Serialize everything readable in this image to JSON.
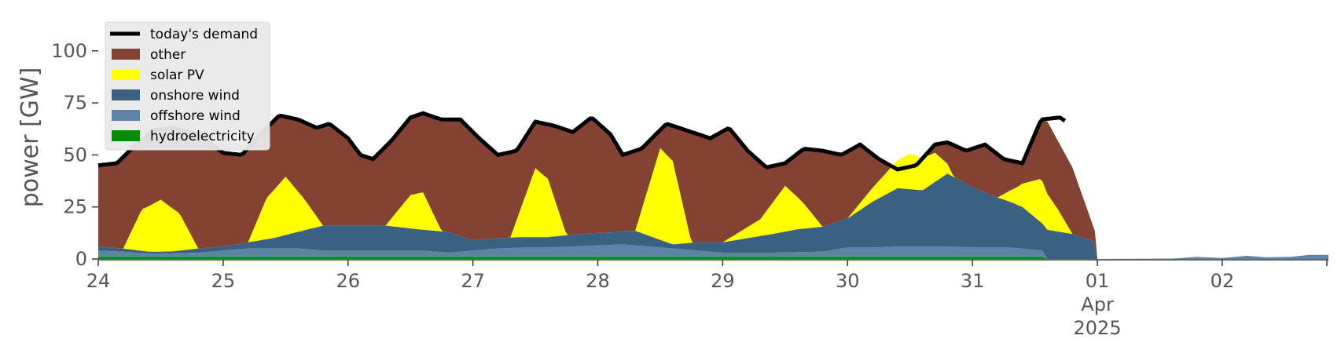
{
  "chart_data": {
    "type": "area",
    "stacked": true,
    "ylabel": "power [GW]",
    "ylim": [
      0,
      115
    ],
    "xlim": [
      0,
      9.85
    ],
    "grid": false,
    "legend_position": "top-left",
    "x_ticks": [
      {
        "x": 0,
        "label": "24"
      },
      {
        "x": 1,
        "label": "25"
      },
      {
        "x": 2,
        "label": "26"
      },
      {
        "x": 3,
        "label": "27"
      },
      {
        "x": 4,
        "label": "28"
      },
      {
        "x": 5,
        "label": "29"
      },
      {
        "x": 6,
        "label": "30"
      },
      {
        "x": 7,
        "label": "31"
      },
      {
        "x": 8,
        "label": "01",
        "sub1": "Apr",
        "sub2": "2025"
      },
      {
        "x": 9,
        "label": "02"
      }
    ],
    "y_ticks": [
      0,
      25,
      50,
      75,
      100
    ],
    "colors": {
      "demand": "#000000",
      "other": "#844232",
      "solar": "#ffff00",
      "onshore": "#3a6183",
      "offshore": "#5b84a8",
      "hydro": "#0a8a0a",
      "legend_bg": "#e9e9e9"
    },
    "legend": [
      {
        "key": "demand",
        "label": "today's demand",
        "kind": "line"
      },
      {
        "key": "other",
        "label": "other",
        "kind": "patch"
      },
      {
        "key": "solar",
        "label": "solar PV",
        "kind": "patch"
      },
      {
        "key": "onshore",
        "label": "onshore wind",
        "kind": "patch"
      },
      {
        "key": "offshore",
        "label": "offshore wind",
        "kind": "patch"
      },
      {
        "key": "hydro",
        "label": "hydroelectricity",
        "kind": "patch"
      }
    ],
    "series": {
      "hydro": [
        [
          0,
          1
        ],
        [
          2,
          1
        ],
        [
          4,
          1
        ],
        [
          6,
          1
        ],
        [
          7,
          1
        ],
        [
          7.56,
          1
        ],
        [
          7.6,
          0
        ]
      ],
      "offshore": [
        [
          0,
          3
        ],
        [
          0.2,
          2.5
        ],
        [
          0.4,
          1.5
        ],
        [
          0.5,
          1.5
        ],
        [
          0.8,
          2
        ],
        [
          1,
          3
        ],
        [
          1.2,
          4
        ],
        [
          1.4,
          4
        ],
        [
          1.6,
          4
        ],
        [
          1.8,
          3
        ],
        [
          2,
          3
        ],
        [
          2.3,
          3
        ],
        [
          2.6,
          3
        ],
        [
          2.8,
          2
        ],
        [
          3,
          3
        ],
        [
          3.2,
          4
        ],
        [
          3.4,
          4.5
        ],
        [
          3.6,
          4.5
        ],
        [
          3.8,
          5
        ],
        [
          4,
          5.5
        ],
        [
          4.2,
          6
        ],
        [
          4.4,
          5
        ],
        [
          4.6,
          4
        ],
        [
          4.8,
          3
        ],
        [
          5,
          2
        ],
        [
          5.4,
          2
        ],
        [
          5.8,
          2.5
        ],
        [
          6,
          4.5
        ],
        [
          6.2,
          4.5
        ],
        [
          6.4,
          5
        ],
        [
          6.8,
          5
        ],
        [
          7,
          4.5
        ],
        [
          7.3,
          4.5
        ],
        [
          7.56,
          3
        ],
        [
          7.6,
          0
        ]
      ],
      "onshore": [
        [
          0,
          2
        ],
        [
          0.2,
          1.5
        ],
        [
          0.4,
          1
        ],
        [
          0.6,
          1
        ],
        [
          0.8,
          2
        ],
        [
          1,
          2
        ],
        [
          1.2,
          3
        ],
        [
          1.4,
          5
        ],
        [
          1.6,
          8
        ],
        [
          1.8,
          12
        ],
        [
          2,
          12
        ],
        [
          2.3,
          12
        ],
        [
          2.6,
          10
        ],
        [
          2.8,
          10
        ],
        [
          3,
          5
        ],
        [
          3.3,
          5
        ],
        [
          3.6,
          5
        ],
        [
          3.9,
          6
        ],
        [
          4.1,
          6
        ],
        [
          4.3,
          7
        ],
        [
          4.6,
          2
        ],
        [
          4.8,
          4
        ],
        [
          5,
          5
        ],
        [
          5.3,
          8
        ],
        [
          5.6,
          11
        ],
        [
          5.8,
          12
        ],
        [
          6,
          14
        ],
        [
          6.2,
          22
        ],
        [
          6.4,
          28
        ],
        [
          6.6,
          27
        ],
        [
          6.8,
          35
        ],
        [
          7,
          29
        ],
        [
          7.2,
          24
        ],
        [
          7.4,
          20
        ],
        [
          7.56,
          13
        ],
        [
          7.6,
          14
        ],
        [
          7.8,
          12
        ],
        [
          7.95,
          9
        ],
        [
          7.97,
          9
        ],
        [
          8,
          0
        ]
      ],
      "solar": [
        [
          0,
          0
        ],
        [
          0.2,
          0
        ],
        [
          0.35,
          20
        ],
        [
          0.5,
          25
        ],
        [
          0.65,
          18
        ],
        [
          0.8,
          0
        ],
        [
          1,
          0
        ],
        [
          1.2,
          0
        ],
        [
          1.35,
          20
        ],
        [
          1.5,
          28
        ],
        [
          1.65,
          15
        ],
        [
          1.8,
          0
        ],
        [
          2,
          0
        ],
        [
          2.3,
          0
        ],
        [
          2.5,
          16
        ],
        [
          2.6,
          18
        ],
        [
          2.75,
          0
        ],
        [
          3,
          0
        ],
        [
          3.3,
          0
        ],
        [
          3.5,
          33
        ],
        [
          3.6,
          28
        ],
        [
          3.75,
          0
        ],
        [
          4,
          0
        ],
        [
          4.3,
          0
        ],
        [
          4.5,
          44
        ],
        [
          4.6,
          40
        ],
        [
          4.75,
          0
        ],
        [
          5,
          0
        ],
        [
          5.3,
          8
        ],
        [
          5.5,
          22
        ],
        [
          5.65,
          12
        ],
        [
          5.8,
          0
        ],
        [
          6,
          0
        ],
        [
          6.3,
          10
        ],
        [
          6.5,
          17
        ],
        [
          6.7,
          14
        ],
        [
          6.85,
          0
        ],
        [
          7,
          0
        ],
        [
          7.2,
          0
        ],
        [
          7.35,
          8
        ],
        [
          7.55,
          21
        ],
        [
          7.68,
          11
        ],
        [
          7.8,
          0
        ],
        [
          7.97,
          0
        ],
        [
          8,
          0
        ]
      ],
      "demand": [
        [
          0,
          45
        ],
        [
          0.15,
          46
        ],
        [
          0.3,
          55
        ],
        [
          0.45,
          62
        ],
        [
          0.6,
          63
        ],
        [
          0.8,
          60
        ],
        [
          1,
          51
        ],
        [
          1.15,
          50
        ],
        [
          1.3,
          60
        ],
        [
          1.45,
          69
        ],
        [
          1.6,
          67
        ],
        [
          1.75,
          63
        ],
        [
          1.85,
          65
        ],
        [
          2,
          58
        ],
        [
          2.1,
          50
        ],
        [
          2.2,
          48
        ],
        [
          2.35,
          57
        ],
        [
          2.5,
          68
        ],
        [
          2.6,
          70
        ],
        [
          2.75,
          67
        ],
        [
          2.9,
          67
        ],
        [
          3.05,
          58
        ],
        [
          3.2,
          50
        ],
        [
          3.35,
          52
        ],
        [
          3.5,
          66
        ],
        [
          3.65,
          64
        ],
        [
          3.8,
          61
        ],
        [
          3.95,
          68
        ],
        [
          4.1,
          60
        ],
        [
          4.2,
          50
        ],
        [
          4.35,
          53
        ],
        [
          4.55,
          65
        ],
        [
          4.75,
          61
        ],
        [
          4.9,
          58
        ],
        [
          5.05,
          63
        ],
        [
          5.2,
          52
        ],
        [
          5.35,
          44
        ],
        [
          5.5,
          46
        ],
        [
          5.65,
          53
        ],
        [
          5.8,
          52
        ],
        [
          5.95,
          50
        ],
        [
          6.1,
          55
        ],
        [
          6.25,
          48
        ],
        [
          6.4,
          43
        ],
        [
          6.55,
          45
        ],
        [
          6.7,
          55
        ],
        [
          6.8,
          56
        ],
        [
          6.95,
          52
        ],
        [
          7.1,
          55
        ],
        [
          7.25,
          48
        ],
        [
          7.4,
          46
        ],
        [
          7.55,
          67
        ],
        [
          7.7,
          68
        ],
        [
          7.75,
          66
        ]
      ],
      "tail": [
        [
          7.95,
          0
        ],
        [
          8,
          0
        ],
        [
          8.6,
          0.2
        ],
        [
          8.8,
          1
        ],
        [
          9,
          0.5
        ],
        [
          9.2,
          1.5
        ],
        [
          9.35,
          0.8
        ],
        [
          9.55,
          1
        ],
        [
          9.7,
          2
        ],
        [
          9.85,
          2
        ]
      ],
      "other_right": [
        [
          7.55,
          67
        ],
        [
          7.6,
          66
        ],
        [
          7.8,
          44
        ],
        [
          8,
          10
        ],
        [
          8,
          0
        ]
      ]
    }
  }
}
